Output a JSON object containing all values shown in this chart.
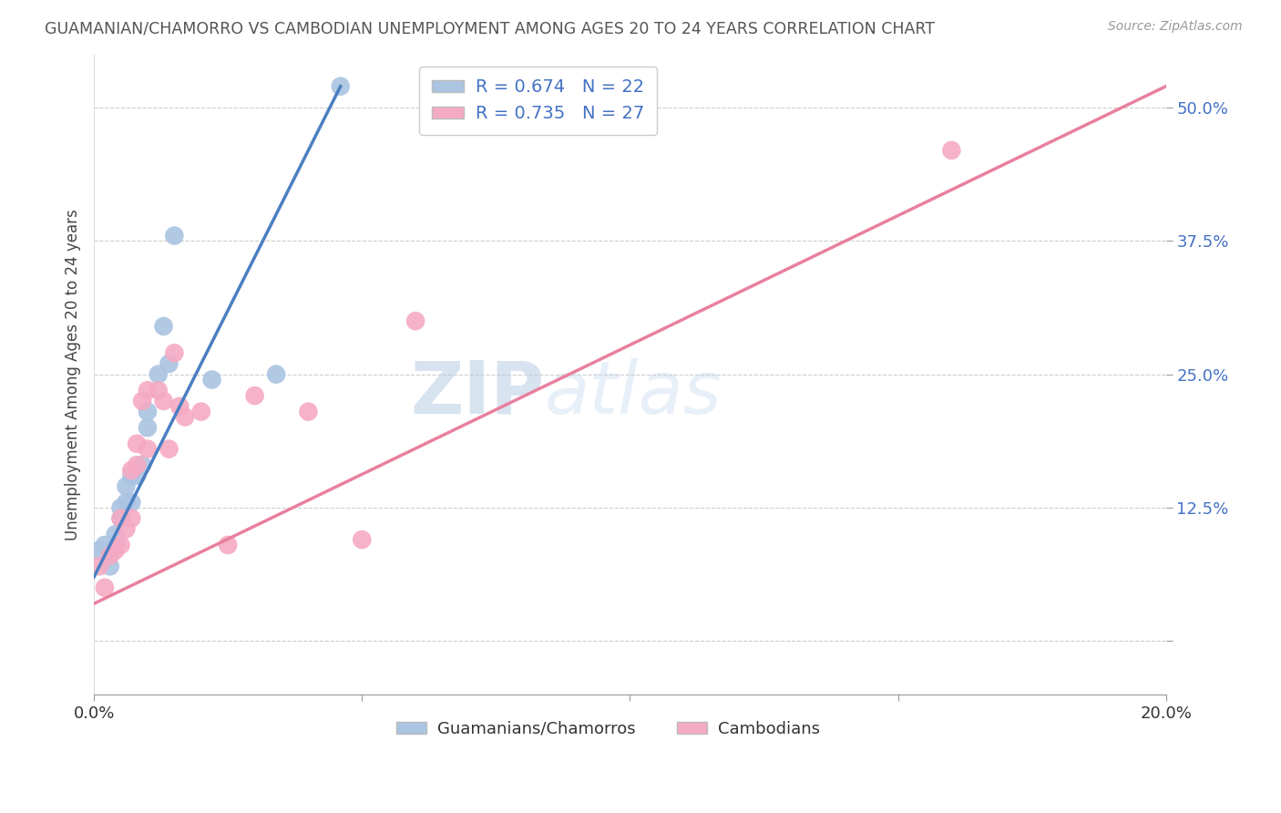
{
  "title": "GUAMANIAN/CHAMORRO VS CAMBODIAN UNEMPLOYMENT AMONG AGES 20 TO 24 YEARS CORRELATION CHART",
  "source": "Source: ZipAtlas.com",
  "ylabel": "Unemployment Among Ages 20 to 24 years",
  "xlim": [
    0.0,
    0.2
  ],
  "ylim": [
    -0.05,
    0.55
  ],
  "yticks": [
    0.0,
    0.125,
    0.25,
    0.375,
    0.5
  ],
  "ytick_labels": [
    "",
    "12.5%",
    "25.0%",
    "37.5%",
    "50.0%"
  ],
  "xticks": [
    0.0,
    0.05,
    0.1,
    0.15,
    0.2
  ],
  "xtick_labels": [
    "0.0%",
    "",
    "",
    "",
    "20.0%"
  ],
  "guamanian_R": 0.674,
  "guamanian_N": 22,
  "cambodian_R": 0.735,
  "cambodian_N": 27,
  "guamanian_color": "#aac4e2",
  "cambodian_color": "#f5aac4",
  "guamanian_line_color": "#4a7fc1",
  "cambodian_line_color": "#e8809e",
  "watermark": "ZIPatlas",
  "legend_label_guamanian": "Guamanians/Chamorros",
  "legend_label_cambodian": "Cambodians",
  "guamanian_x": [
    0.001,
    0.002,
    0.003,
    0.004,
    0.004,
    0.005,
    0.005,
    0.006,
    0.006,
    0.007,
    0.007,
    0.008,
    0.009,
    0.01,
    0.01,
    0.012,
    0.013,
    0.014,
    0.015,
    0.022,
    0.034,
    0.046
  ],
  "guamanian_y": [
    0.085,
    0.09,
    0.07,
    0.09,
    0.1,
    0.115,
    0.125,
    0.13,
    0.145,
    0.13,
    0.155,
    0.155,
    0.165,
    0.2,
    0.215,
    0.25,
    0.295,
    0.26,
    0.38,
    0.245,
    0.25,
    0.52
  ],
  "cambodian_x": [
    0.001,
    0.002,
    0.003,
    0.004,
    0.005,
    0.005,
    0.006,
    0.007,
    0.007,
    0.008,
    0.008,
    0.009,
    0.01,
    0.01,
    0.012,
    0.013,
    0.014,
    0.015,
    0.016,
    0.017,
    0.02,
    0.025,
    0.03,
    0.04,
    0.05,
    0.06,
    0.16
  ],
  "cambodian_y": [
    0.07,
    0.05,
    0.08,
    0.085,
    0.09,
    0.115,
    0.105,
    0.115,
    0.16,
    0.165,
    0.185,
    0.225,
    0.18,
    0.235,
    0.235,
    0.225,
    0.18,
    0.27,
    0.22,
    0.21,
    0.215,
    0.09,
    0.23,
    0.215,
    0.095,
    0.3,
    0.46
  ],
  "guamanian_trend_x": [
    0.0,
    0.046
  ],
  "guamanian_trend_y": [
    0.06,
    0.52
  ],
  "cambodian_trend_x": [
    0.0,
    0.2
  ],
  "cambodian_trend_y": [
    0.035,
    0.52
  ]
}
